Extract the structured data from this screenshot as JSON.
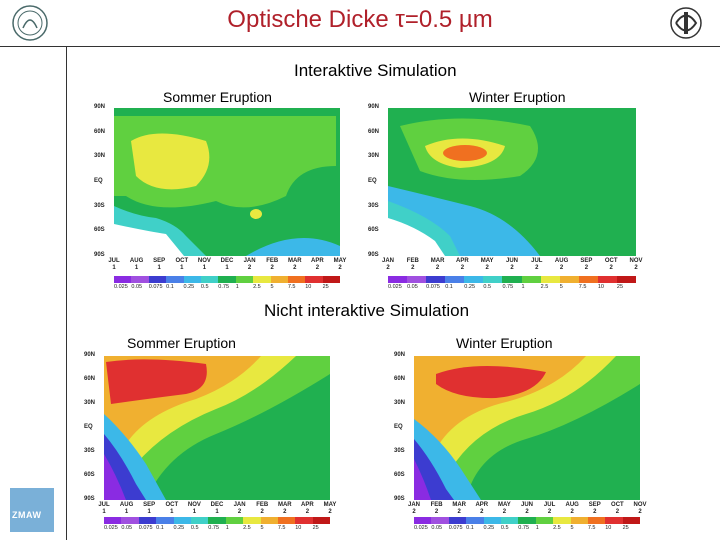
{
  "title": "Optische Dicke τ=0.5 µm",
  "section_interactive": "Interaktive  Simulation",
  "section_noninteractive": "Nicht interaktive Simulation",
  "label_summer": "Sommer Eruption",
  "label_winter": "Winter Eruption",
  "bottom_logo_text": "ZMAW",
  "y_ticks": [
    "90N",
    "60N",
    "30N",
    "EQ",
    "30S",
    "60S",
    "90S"
  ],
  "y_ticks_lower": [
    "90N",
    "60N",
    "30N",
    "EQ",
    "30S",
    "60S",
    "90S"
  ],
  "x_summer": [
    {
      "m": "JUL",
      "y": "1"
    },
    {
      "m": "AUG",
      "y": "1"
    },
    {
      "m": "SEP",
      "y": "1"
    },
    {
      "m": "OCT",
      "y": "1"
    },
    {
      "m": "NOV",
      "y": "1"
    },
    {
      "m": "DEC",
      "y": "1"
    },
    {
      "m": "JAN",
      "y": "2"
    },
    {
      "m": "FEB",
      "y": "2"
    },
    {
      "m": "MAR",
      "y": "2"
    },
    {
      "m": "APR",
      "y": "2"
    },
    {
      "m": "MAY",
      "y": "2"
    }
  ],
  "x_winter": [
    {
      "m": "JAN",
      "y": "2"
    },
    {
      "m": "FEB",
      "y": "2"
    },
    {
      "m": "MAR",
      "y": "2"
    },
    {
      "m": "APR",
      "y": "2"
    },
    {
      "m": "MAY",
      "y": "2"
    },
    {
      "m": "JUN",
      "y": "2"
    },
    {
      "m": "JUL",
      "y": "2"
    },
    {
      "m": "AUG",
      "y": "2"
    },
    {
      "m": "SEP",
      "y": "2"
    },
    {
      "m": "OCT",
      "y": "2"
    },
    {
      "m": "NOV",
      "y": "2"
    }
  ],
  "colorbar_labels": [
    "0.025",
    "0.05",
    "0.075",
    "0.1",
    "0.25",
    "0.5",
    "0.75",
    "1",
    "2.5",
    "5",
    "7.5",
    "10",
    "25"
  ],
  "colorbar_colors": [
    "#8a2be2",
    "#a050e0",
    "#3c3cd0",
    "#4a80e8",
    "#3cb8e8",
    "#40d0c8",
    "#20b050",
    "#60d040",
    "#e8e840",
    "#f0b030",
    "#f07020",
    "#e03030",
    "#c01818"
  ]
}
